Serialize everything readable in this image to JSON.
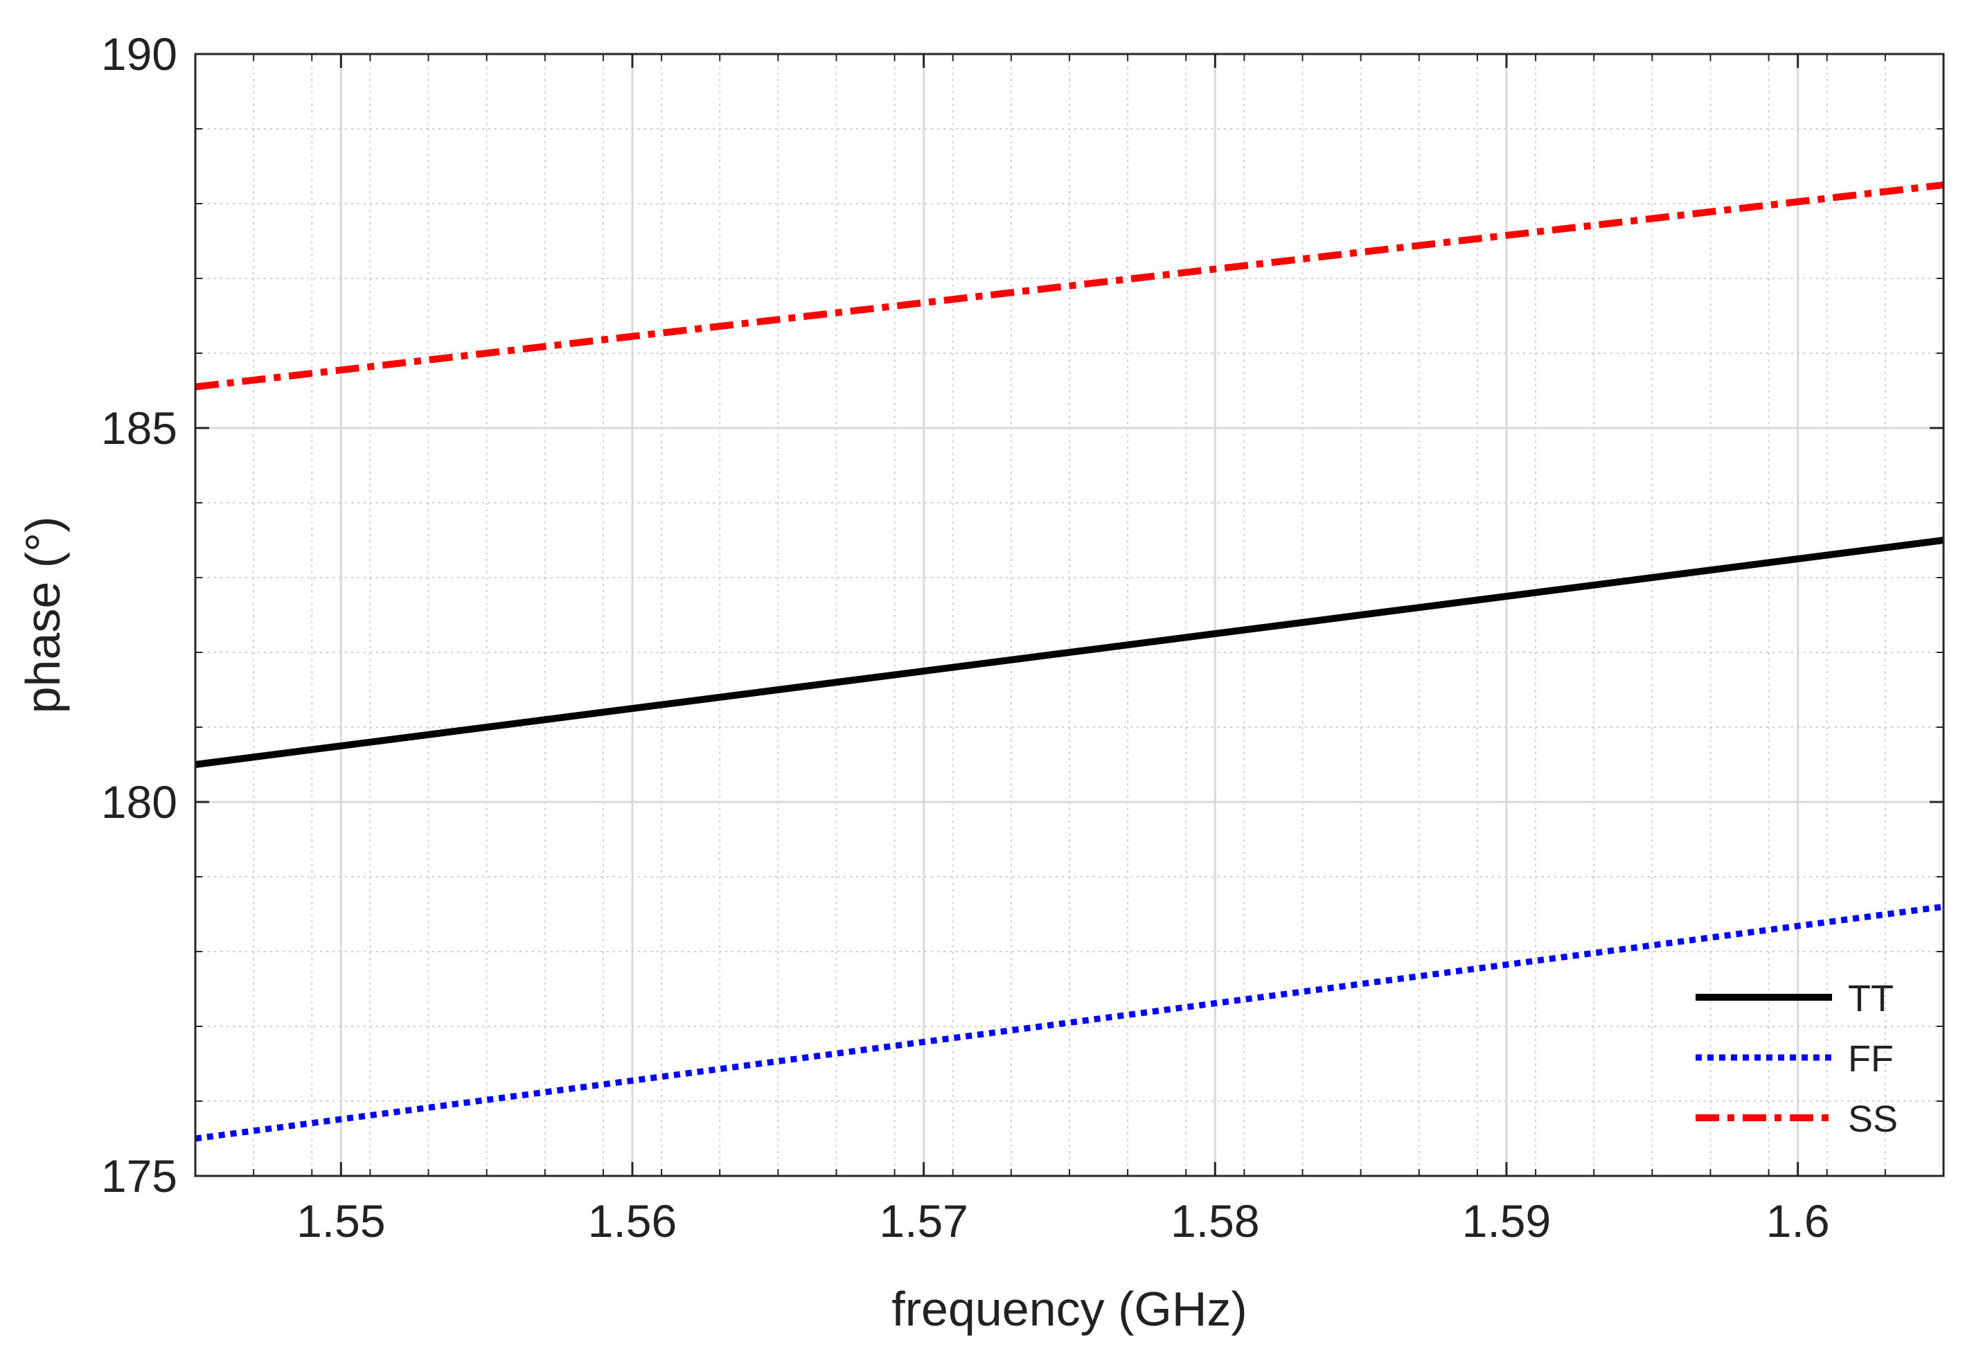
{
  "chart_data": {
    "type": "line",
    "title": "",
    "xlabel": "frequency (GHz)",
    "ylabel": "phase (°)",
    "xlim": [
      1.545,
      1.605
    ],
    "ylim": [
      175,
      190
    ],
    "x_ticks": [
      1.55,
      1.56,
      1.57,
      1.58,
      1.59,
      1.6
    ],
    "x_tick_labels": [
      "1.55",
      "1.56",
      "1.57",
      "1.58",
      "1.59",
      "1.6"
    ],
    "y_ticks": [
      175,
      180,
      185,
      190
    ],
    "y_tick_labels": [
      "175",
      "180",
      "185",
      "190"
    ],
    "x_minor_step": 0.002,
    "y_minor_step": 1,
    "grid": true,
    "minor_grid": true,
    "legend_position": "bottom-right",
    "series": [
      {
        "name": "TT",
        "color": "#000000",
        "style": "solid",
        "x": [
          1.545,
          1.605
        ],
        "y": [
          180.5,
          183.5
        ]
      },
      {
        "name": "FF",
        "color": "#0000ff",
        "style": "dotted",
        "x": [
          1.545,
          1.605
        ],
        "y": [
          175.5,
          178.6
        ]
      },
      {
        "name": "SS",
        "color": "#ff0000",
        "style": "dashdot",
        "x": [
          1.545,
          1.605
        ],
        "y": [
          185.55,
          188.25
        ]
      }
    ]
  }
}
